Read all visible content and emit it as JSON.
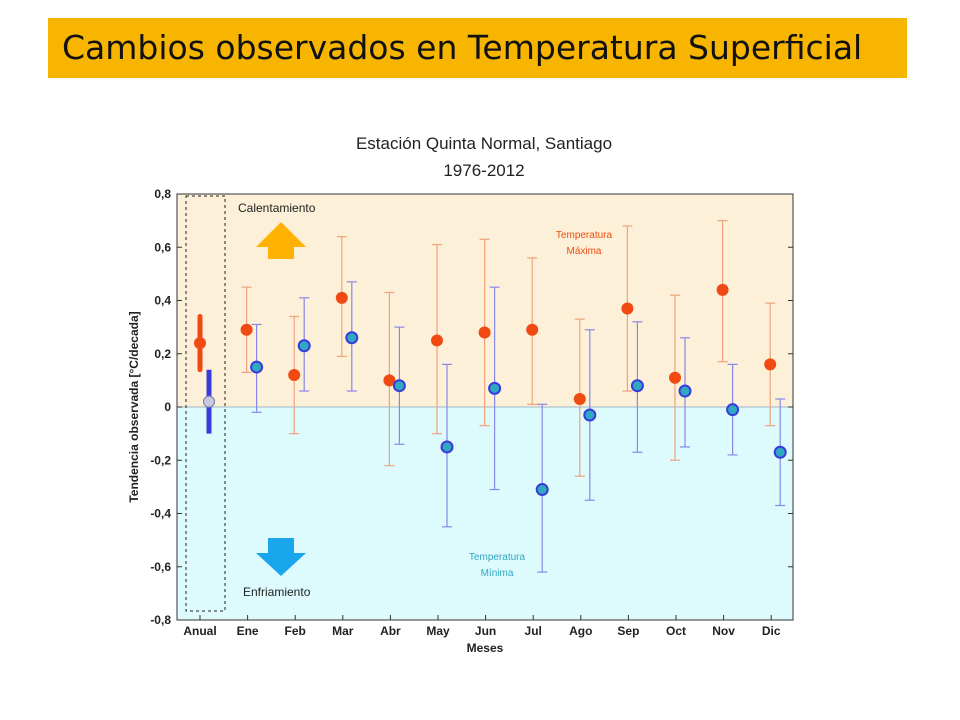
{
  "slide": {
    "title": "Cambios observados en Temperatura Superficial"
  },
  "colors": {
    "banner": "#f7b500",
    "warm_band": "#fdf0d8",
    "cool_band": "#ddfafd",
    "max_series": "#f04a12",
    "max_error": "#f0a27c",
    "min_fill": "#2fa8c0",
    "min_edge": "#3a3adc",
    "min_error": "#8888e6",
    "up_arrow": "#ffb300",
    "down_arrow": "#1aa6ec"
  },
  "chart_data": {
    "type": "scatter",
    "title": "Estación Quinta Normal, Santiago",
    "subtitle": "1976-2012",
    "xlabel": "Meses",
    "ylabel": "Tendencia observada [°C/decada]",
    "ylim": [
      -0.8,
      0.8
    ],
    "yticks": [
      0.8,
      0.6,
      0.4,
      0.2,
      0,
      -0.2,
      -0.4,
      -0.6,
      -0.8
    ],
    "ytick_labels": [
      "0,8",
      "0,6",
      "0,4",
      "0,2",
      "0",
      "-0,2",
      "-0,4",
      "-0,6",
      "-0,8"
    ],
    "categories": [
      "Anual",
      "Ene",
      "Feb",
      "Mar",
      "Abr",
      "May",
      "Jun",
      "Jul",
      "Ago",
      "Sep",
      "Oct",
      "Nov",
      "Dic"
    ],
    "grid": false,
    "series": [
      {
        "name": "Temperatura Máxima",
        "label_lines": [
          "Temperatura",
          "Máxima"
        ],
        "values": [
          0.24,
          0.29,
          0.12,
          0.41,
          0.1,
          0.25,
          0.28,
          0.29,
          0.03,
          0.37,
          0.11,
          0.44,
          0.16
        ],
        "err_low": [
          0.14,
          0.13,
          -0.1,
          0.19,
          -0.22,
          -0.1,
          -0.07,
          0.01,
          -0.26,
          0.06,
          -0.2,
          0.17,
          -0.07
        ],
        "err_high": [
          0.34,
          0.45,
          0.34,
          0.64,
          0.43,
          0.61,
          0.63,
          0.56,
          0.33,
          0.68,
          0.42,
          0.7,
          0.39
        ]
      },
      {
        "name": "Temperatura Mínima",
        "label_lines": [
          "Temperatura",
          "Mínima"
        ],
        "values": [
          0.02,
          0.15,
          0.23,
          0.26,
          0.08,
          -0.15,
          0.07,
          -0.31,
          -0.03,
          0.08,
          0.06,
          -0.01,
          -0.17
        ],
        "err_low": [
          -0.1,
          -0.02,
          0.06,
          0.06,
          -0.14,
          -0.45,
          -0.31,
          -0.62,
          -0.35,
          -0.17,
          -0.15,
          -0.18,
          -0.37
        ],
        "err_high": [
          0.14,
          0.31,
          0.41,
          0.47,
          0.3,
          0.16,
          0.45,
          0.01,
          0.29,
          0.32,
          0.26,
          0.16,
          0.03
        ]
      }
    ],
    "annotations": {
      "warming": "Calentamiento",
      "cooling": "Enfriamiento"
    }
  }
}
